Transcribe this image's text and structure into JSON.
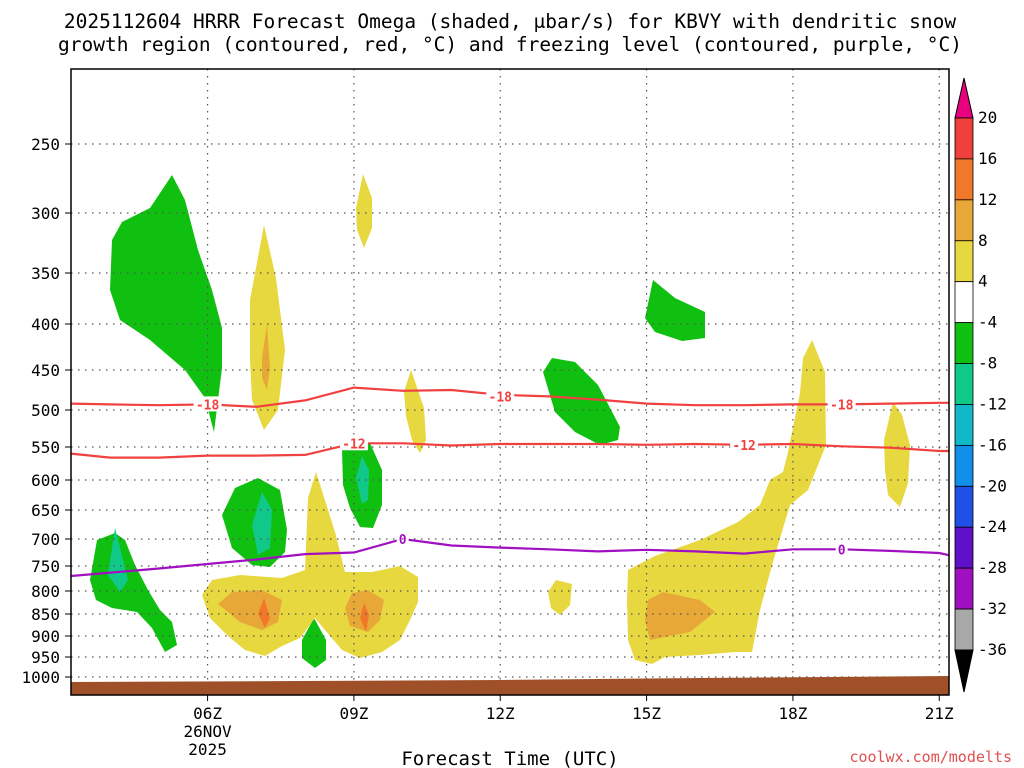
{
  "chart_data": {
    "type": "heatmap",
    "title_line1": "2025112604 HRRR Forecast Omega (shaded, μbar/s) for KBVY with dendritic snow",
    "title_line2": "growth region (contoured, red, °C) and freezing level (contoured, purple, °C)",
    "xlabel": "Forecast Time (UTC)",
    "credit": "coolwx.com/modelts",
    "x_ticks": [
      {
        "hour": 6,
        "label": "06Z",
        "date": "26NOV",
        "year": "2025"
      },
      {
        "hour": 9,
        "label": "09Z"
      },
      {
        "hour": 12,
        "label": "12Z"
      },
      {
        "hour": 15,
        "label": "15Z"
      },
      {
        "hour": 18,
        "label": "18Z"
      },
      {
        "hour": 21,
        "label": "21Z"
      }
    ],
    "x_range": [
      3.2,
      21.2
    ],
    "y_ticks": [
      250,
      300,
      350,
      400,
      450,
      500,
      550,
      600,
      650,
      700,
      750,
      800,
      850,
      900,
      950,
      1000
    ],
    "colorbar": {
      "labels": [
        "20",
        "16",
        "12",
        "8",
        "4",
        "-4",
        "-8",
        "-12",
        "-16",
        "-20",
        "-24",
        "-28",
        "-32",
        "-36"
      ],
      "colors": [
        "#e8007f",
        "#f0403c",
        "#f07828",
        "#e8a838",
        "#e8d840",
        "#ffffff",
        "#10c010",
        "#10c888",
        "#10b8c8",
        "#1090e8",
        "#2050e8",
        "#6010c8",
        "#a010c0",
        "#a8a8a8",
        "#000000"
      ]
    },
    "contours": {
      "dgz_minus18": {
        "label": "-18",
        "color": "#f04040",
        "points": [
          [
            3.2,
            492
          ],
          [
            4,
            493
          ],
          [
            5,
            494
          ],
          [
            6,
            493
          ],
          [
            7,
            496
          ],
          [
            8,
            488
          ],
          [
            9,
            472
          ],
          [
            10,
            476
          ],
          [
            11,
            475
          ],
          [
            12,
            481
          ],
          [
            13,
            483
          ],
          [
            14,
            487
          ],
          [
            15,
            492
          ],
          [
            16,
            494
          ],
          [
            17,
            494
          ],
          [
            18,
            493
          ],
          [
            19,
            493
          ],
          [
            20,
            492
          ],
          [
            21,
            491
          ],
          [
            21.2,
            491
          ]
        ],
        "label_at": [
          [
            6.0,
            493
          ],
          [
            12.0,
            483
          ],
          [
            19.0,
            493
          ]
        ]
      },
      "dgz_minus12": {
        "label": "-12",
        "color": "#f04040",
        "points": [
          [
            3.2,
            560
          ],
          [
            4,
            566
          ],
          [
            5,
            566
          ],
          [
            6,
            563
          ],
          [
            7,
            563
          ],
          [
            8,
            562
          ],
          [
            9,
            545
          ],
          [
            10,
            545
          ],
          [
            11,
            548
          ],
          [
            12,
            546
          ],
          [
            13,
            546
          ],
          [
            14,
            546
          ],
          [
            15,
            547
          ],
          [
            16,
            546
          ],
          [
            17,
            547
          ],
          [
            18,
            546
          ],
          [
            19,
            549
          ],
          [
            20,
            551
          ],
          [
            21,
            556
          ],
          [
            21.2,
            556
          ]
        ],
        "label_at": [
          [
            9.0,
            545
          ],
          [
            17.0,
            547
          ]
        ]
      },
      "freezing_level": {
        "label": "0",
        "color": "#a010c0",
        "points": [
          [
            3.2,
            770
          ],
          [
            5,
            755
          ],
          [
            7,
            738
          ],
          [
            8,
            728
          ],
          [
            9,
            725
          ],
          [
            10,
            700
          ],
          [
            11,
            712
          ],
          [
            12,
            716
          ],
          [
            13,
            719
          ],
          [
            14,
            723
          ],
          [
            15,
            720
          ],
          [
            16,
            723
          ],
          [
            17,
            727
          ],
          [
            18,
            719
          ],
          [
            19,
            719
          ],
          [
            20,
            722
          ],
          [
            21,
            726
          ],
          [
            21.2,
            730
          ]
        ],
        "label_at": [
          [
            10.0,
            700
          ],
          [
            19.0,
            719
          ]
        ]
      }
    }
  }
}
